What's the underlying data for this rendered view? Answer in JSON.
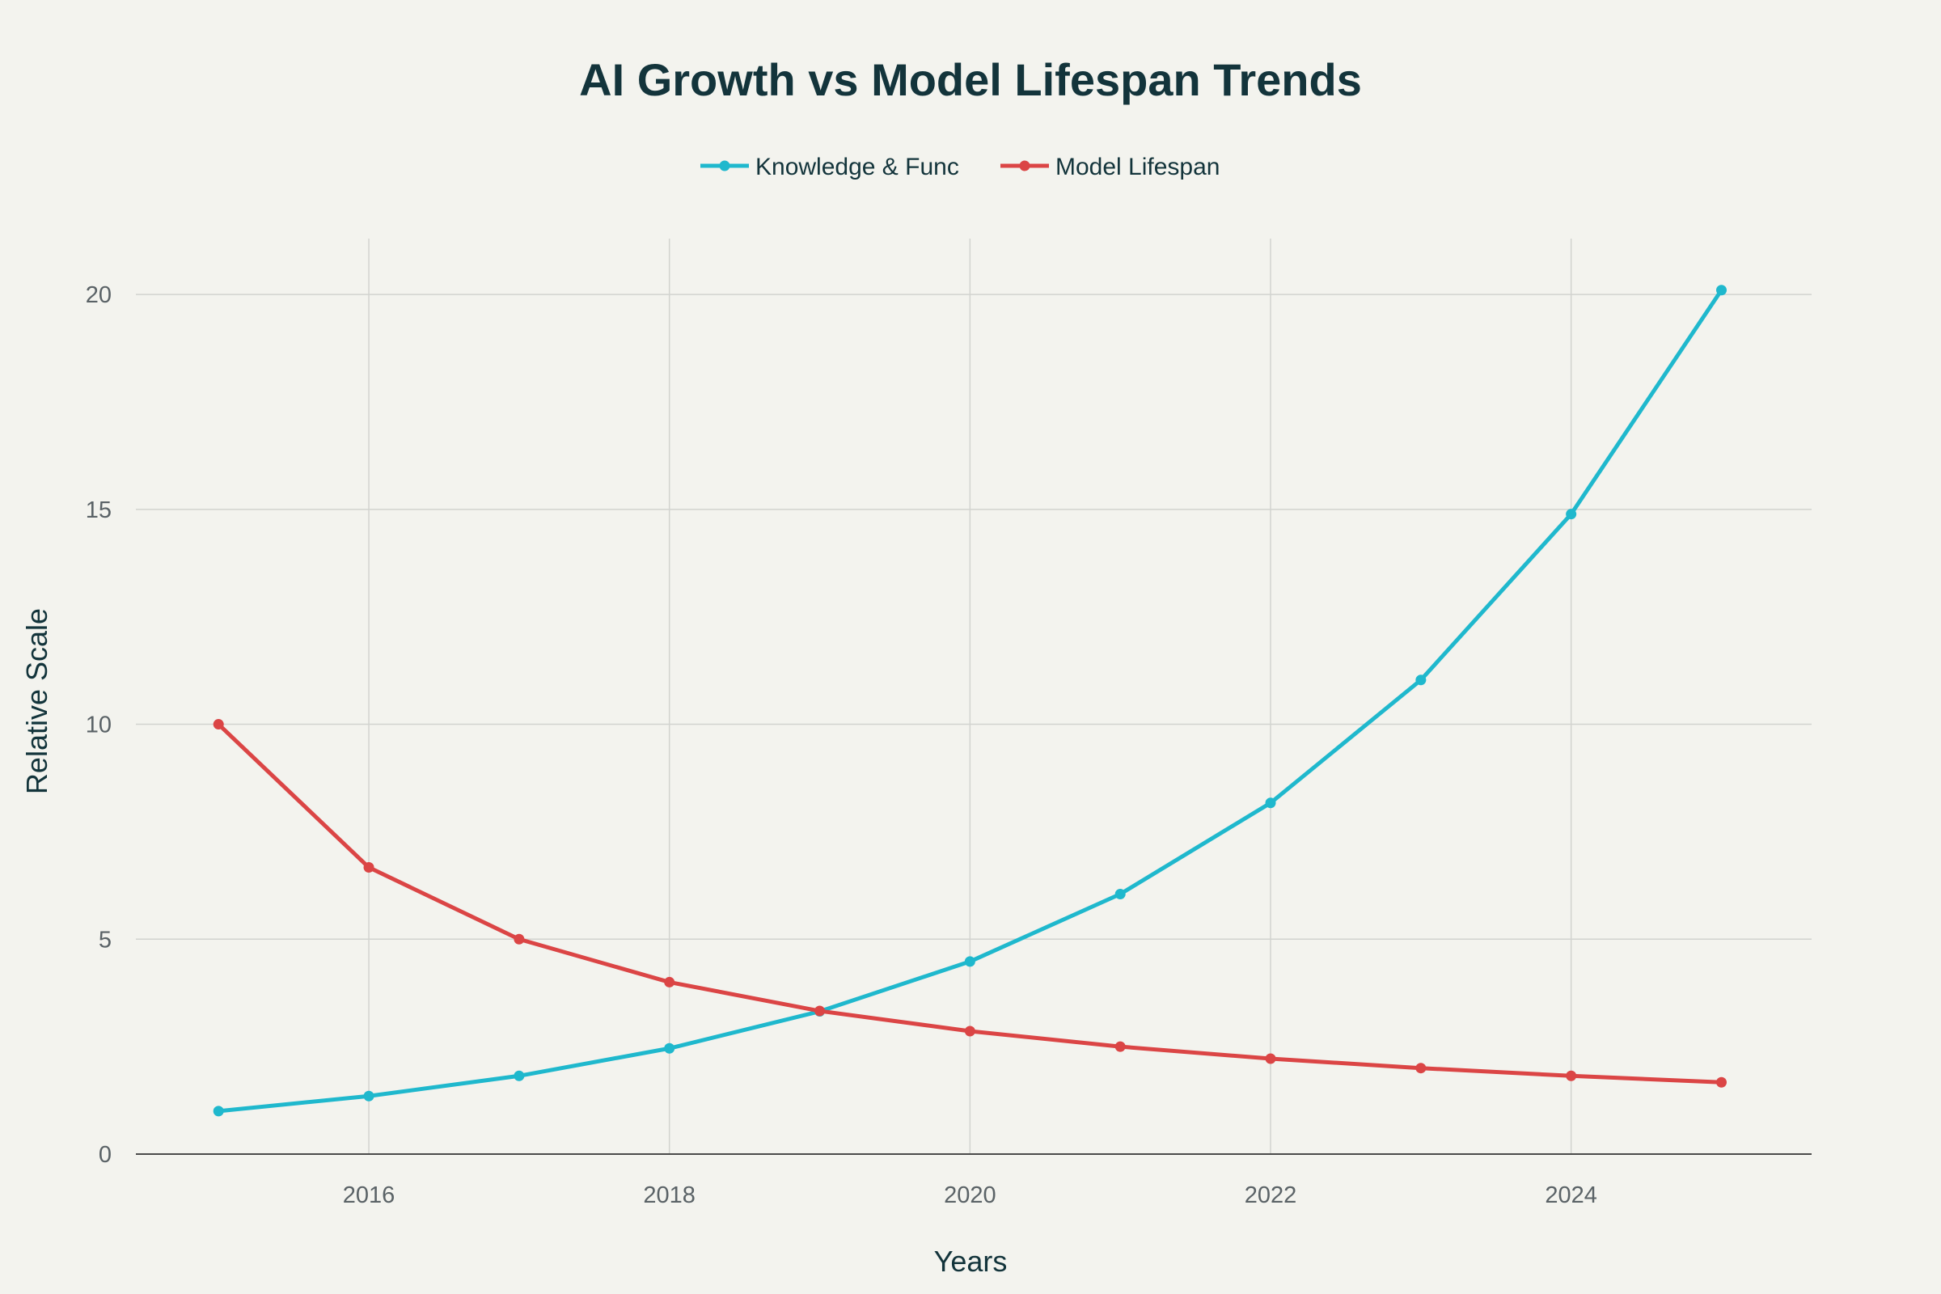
{
  "chart_data": {
    "type": "line",
    "title": "AI Growth vs Model Lifespan Trends",
    "xlabel": "Years",
    "ylabel": "Relative Scale",
    "x": [
      2015,
      2016,
      2017,
      2018,
      2019,
      2020,
      2021,
      2022,
      2023,
      2024,
      2025
    ],
    "xlim": [
      2014.45,
      2025.6
    ],
    "ylim": [
      0,
      21.3
    ],
    "xticks": [
      2016,
      2018,
      2020,
      2022,
      2024
    ],
    "yticks": [
      0,
      5,
      10,
      15,
      20
    ],
    "grid": true,
    "legend_placement": "top-center",
    "series": [
      {
        "name": "Knowledge & Func",
        "color": "#1FB8CD",
        "values": [
          1.0,
          1.35,
          1.82,
          2.46,
          3.32,
          4.48,
          6.05,
          8.17,
          11.03,
          14.89,
          20.1
        ]
      },
      {
        "name": "Model Lifespan",
        "color": "#DB4545",
        "values": [
          10.0,
          6.67,
          5.0,
          4.0,
          3.33,
          2.86,
          2.5,
          2.22,
          2.0,
          1.82,
          1.67
        ]
      }
    ]
  }
}
